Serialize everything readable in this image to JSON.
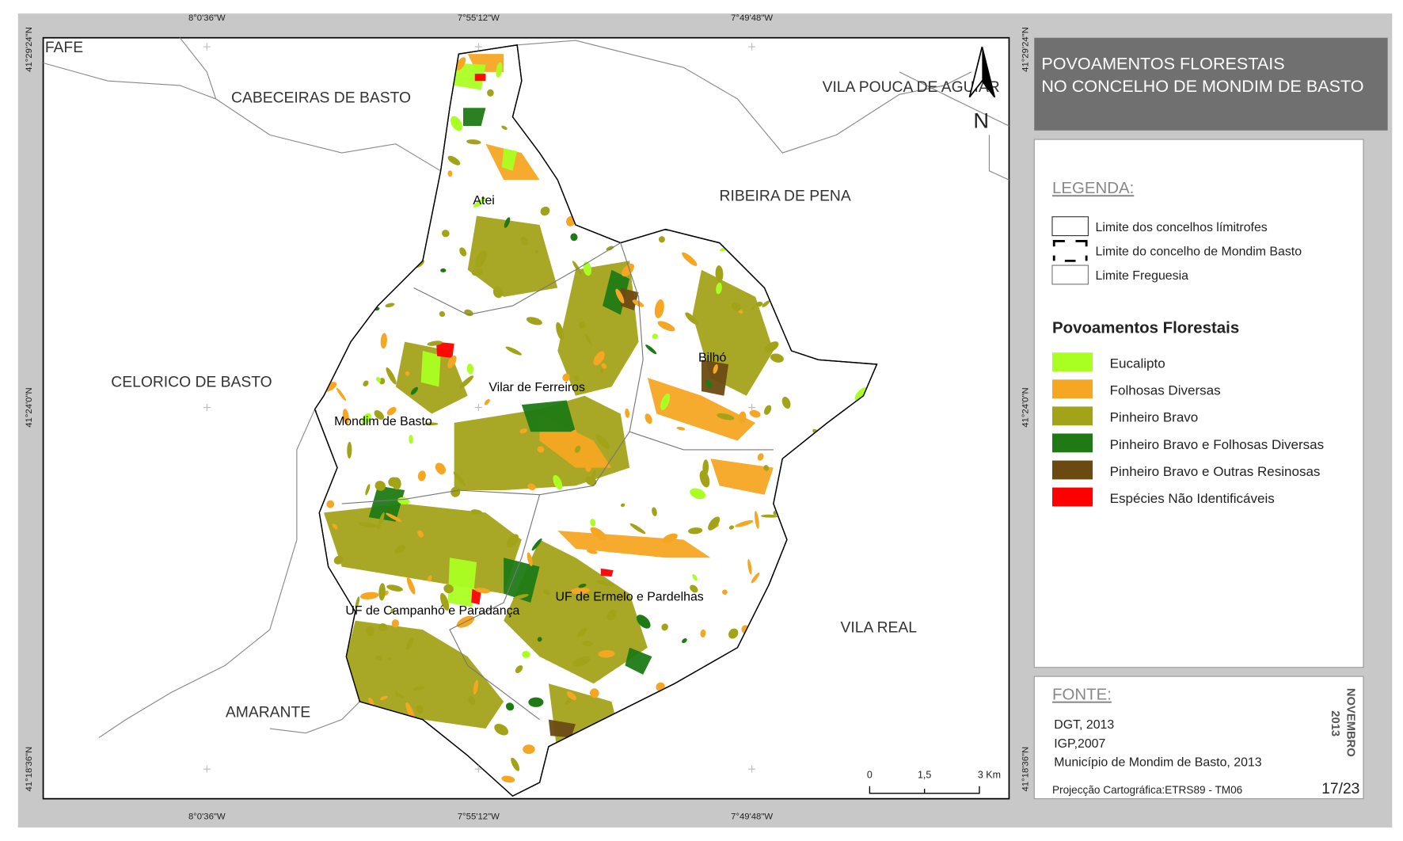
{
  "title": [
    "POVOAMENTOS FLORESTAIS",
    "NO CONCELHO DE MONDIM DE BASTO"
  ],
  "coordinates": {
    "top": [
      "8°0'36\"W",
      "7°55'12\"W",
      "7°49'48\"W"
    ],
    "bottom": [
      "8°0'36\"W",
      "7°55'12\"W",
      "7°49'48\"W"
    ],
    "left": [
      "41°29'24\"N",
      "41°24'0\"N",
      "41°18'36\"N"
    ],
    "right": [
      "41°29'24\"N",
      "41°24'0\"N",
      "41°18'36\"N"
    ]
  },
  "places": [
    "FAFE",
    "CABECEIRAS DE BASTO",
    "VILA POUCA DE AGUIAR",
    "RIBEIRA DE PENA",
    "CELORICO DE BASTO",
    "VILA REAL",
    "AMARANTE"
  ],
  "parishes": [
    "Atei",
    "Vilar de Ferreiros",
    "Bilhó",
    "Mondim de Basto",
    "UF de Campanhó e Paradança",
    "UF de Ermelo e Pardelhas"
  ],
  "north": "N",
  "legend": {
    "heading": "LEGENDA:",
    "boundaries": [
      "Limite dos concelhos límitrofes",
      "Limite do concelho de Mondim Basto",
      "Limite Freguesia"
    ],
    "section_title": "Povoamentos Florestais",
    "classes": [
      {
        "label": "Eucalipto",
        "color": "#aaff22"
      },
      {
        "label": "Folhosas Diversas",
        "color": "#f5a623"
      },
      {
        "label": "Pinheiro Bravo",
        "color": "#a3a31a"
      },
      {
        "label": "Pinheiro Bravo e Folhosas Diversas",
        "color": "#1f7a15"
      },
      {
        "label": "Pinheiro Bravo e Outras Resinosas",
        "color": "#6b4a12"
      },
      {
        "label": "Espécies Não Identificáveis",
        "color": "#ff0000"
      }
    ]
  },
  "source": {
    "heading": "FONTE:",
    "lines": [
      "DGT, 2013",
      "IGP,2007",
      "Município de Mondim de Basto, 2013"
    ],
    "projection": "Projecção Cartográfica:ETRS89 - TM06"
  },
  "scale": [
    "0",
    "1,5",
    "3 Km"
  ],
  "date": [
    "NOVEMBRO",
    "2013"
  ],
  "page": "17/23"
}
